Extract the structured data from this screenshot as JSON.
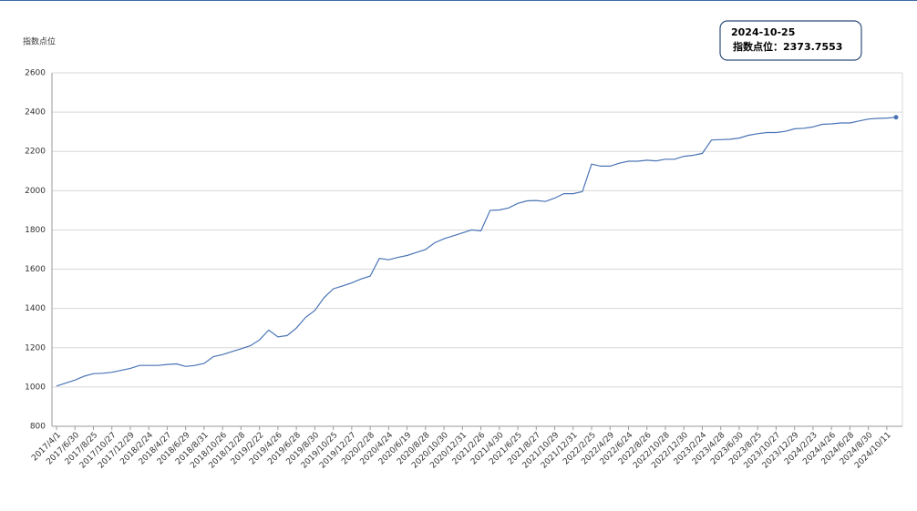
{
  "chart_data": {
    "type": "line",
    "y_axis_label": "指数点位",
    "tooltip": {
      "date": "2024-10-25",
      "text": "指数点位：2373.7553"
    },
    "color": "#4a74b5",
    "categories": [
      "2017/4/1",
      null,
      "2017/6/30",
      null,
      "2017/8/25",
      null,
      "2017/10/27",
      null,
      "2017/12/29",
      null,
      "2018/2/24",
      null,
      "2018/4/27",
      null,
      "2018/6/29",
      null,
      "2018/8/31",
      null,
      "2018/10/26",
      null,
      "2018/12/28",
      null,
      "2019/2/22",
      null,
      "2019/4/26",
      null,
      "2019/6/28",
      null,
      "2019/8/30",
      null,
      "2019/10/25",
      null,
      "2019/12/27",
      null,
      "2020/2/28",
      null,
      "2020/4/24",
      null,
      "2020/6/19",
      null,
      "2020/8/28",
      null,
      "2020/10/30",
      null,
      "2020/12/31",
      null,
      "2021/2/26",
      null,
      "2021/4/30",
      null,
      "2021/6/25",
      null,
      "2021/8/27",
      null,
      "2021/10/29",
      null,
      "2021/12/31",
      null,
      "2022/2/25",
      null,
      "2022/4/29",
      null,
      "2022/6/24",
      null,
      "2022/8/26",
      null,
      "2022/10/28",
      null,
      "2022/12/30",
      null,
      "2023/2/24",
      null,
      "2023/4/28",
      null,
      "2023/6/30",
      null,
      "2023/8/25",
      null,
      "2023/10/27",
      null,
      "2023/12/29",
      null,
      "2024/2/23",
      null,
      "2024/4/26",
      null,
      "2024/6/28",
      null,
      "2024/8/30",
      null,
      "2024/10/11",
      null
    ],
    "values": [
      1005,
      1020,
      1035,
      1055,
      1068,
      1070,
      1075,
      1085,
      1095,
      1110,
      1110,
      1110,
      1115,
      1118,
      1105,
      1110,
      1120,
      1155,
      1165,
      1180,
      1195,
      1210,
      1240,
      1290,
      1255,
      1262,
      1300,
      1355,
      1390,
      1455,
      1500,
      1515,
      1530,
      1550,
      1565,
      1655,
      1648,
      1660,
      1670,
      1685,
      1700,
      1735,
      1755,
      1770,
      1785,
      1800,
      1795,
      1900,
      1902,
      1912,
      1935,
      1948,
      1950,
      1945,
      1962,
      1985,
      1985,
      1995,
      2135,
      2125,
      2125,
      2140,
      2150,
      2150,
      2155,
      2152,
      2160,
      2160,
      2175,
      2180,
      2190,
      2258,
      2260,
      2262,
      2268,
      2282,
      2290,
      2296,
      2296,
      2302,
      2315,
      2318,
      2325,
      2338,
      2340,
      2345,
      2345,
      2355,
      2365,
      2368,
      2370,
      2373.7553
    ],
    "ylim": [
      800,
      2600
    ],
    "yticks": [
      800,
      1000,
      1200,
      1400,
      1600,
      1800,
      2000,
      2200,
      2400,
      2600
    ],
    "grid": true
  }
}
